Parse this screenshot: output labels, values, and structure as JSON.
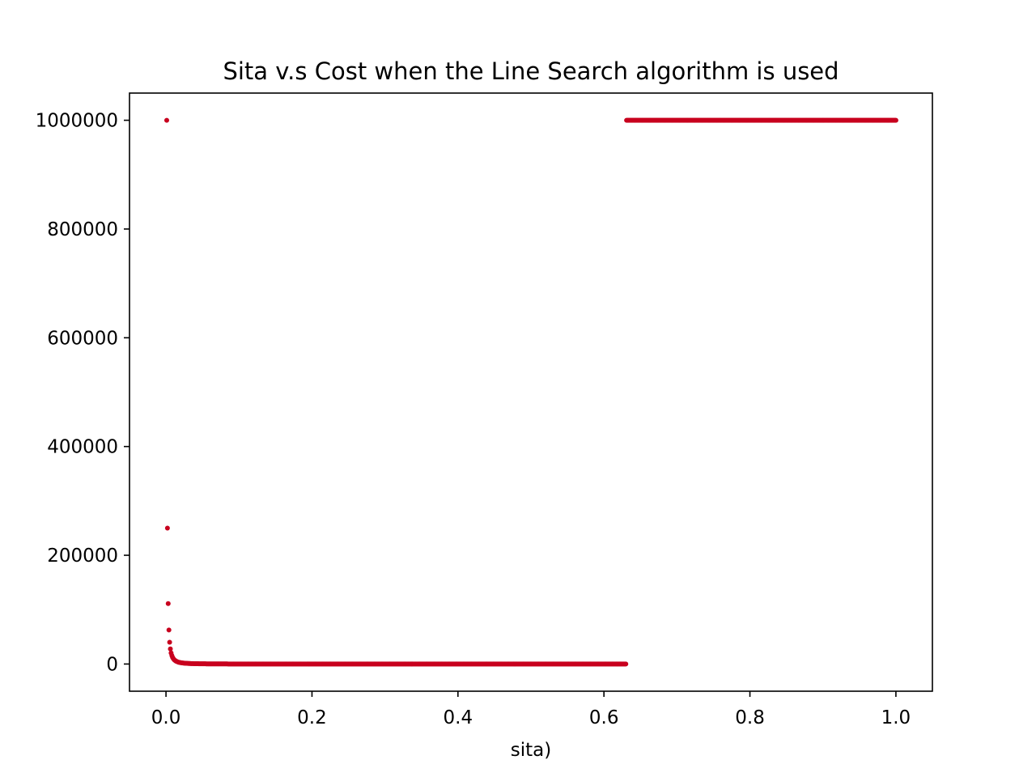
{
  "chart_data": {
    "type": "scatter",
    "title": "Sita v.s Cost when the Line Search algorithm is used",
    "xlabel": "sita)",
    "ylabel": "",
    "xlim": [
      -0.05,
      1.05
    ],
    "ylim": [
      -50000,
      1050000
    ],
    "x_ticks": [
      0.0,
      0.2,
      0.4,
      0.6,
      0.8,
      1.0
    ],
    "x_tick_labels": [
      "0.0",
      "0.2",
      "0.4",
      "0.6",
      "0.8",
      "1.0"
    ],
    "y_ticks": [
      0,
      200000,
      400000,
      600000,
      800000,
      1000000
    ],
    "y_tick_labels": [
      "0",
      "200000",
      "400000",
      "600000",
      "800000",
      "1000000"
    ],
    "grid": false,
    "series": [
      {
        "color": "#c8001e",
        "marker": "circle",
        "pattern": {
          "description_data": "cost = 1/sita^2 for sita < 0.631; cost = 1000000 for sita >= 0.631",
          "x_start": 0.001,
          "x_end": 1.0,
          "x_step": 0.001,
          "threshold": 0.631,
          "cap_value": 1000000
        }
      }
    ],
    "sample_points": [
      [
        0.001,
        1000000
      ],
      [
        0.002,
        250000
      ],
      [
        0.003,
        111111
      ],
      [
        0.004,
        62500
      ],
      [
        0.005,
        40000
      ],
      [
        0.01,
        10000
      ],
      [
        0.05,
        400
      ],
      [
        0.63,
        2.5
      ],
      [
        0.631,
        1000000
      ],
      [
        1.0,
        1000000
      ]
    ]
  }
}
